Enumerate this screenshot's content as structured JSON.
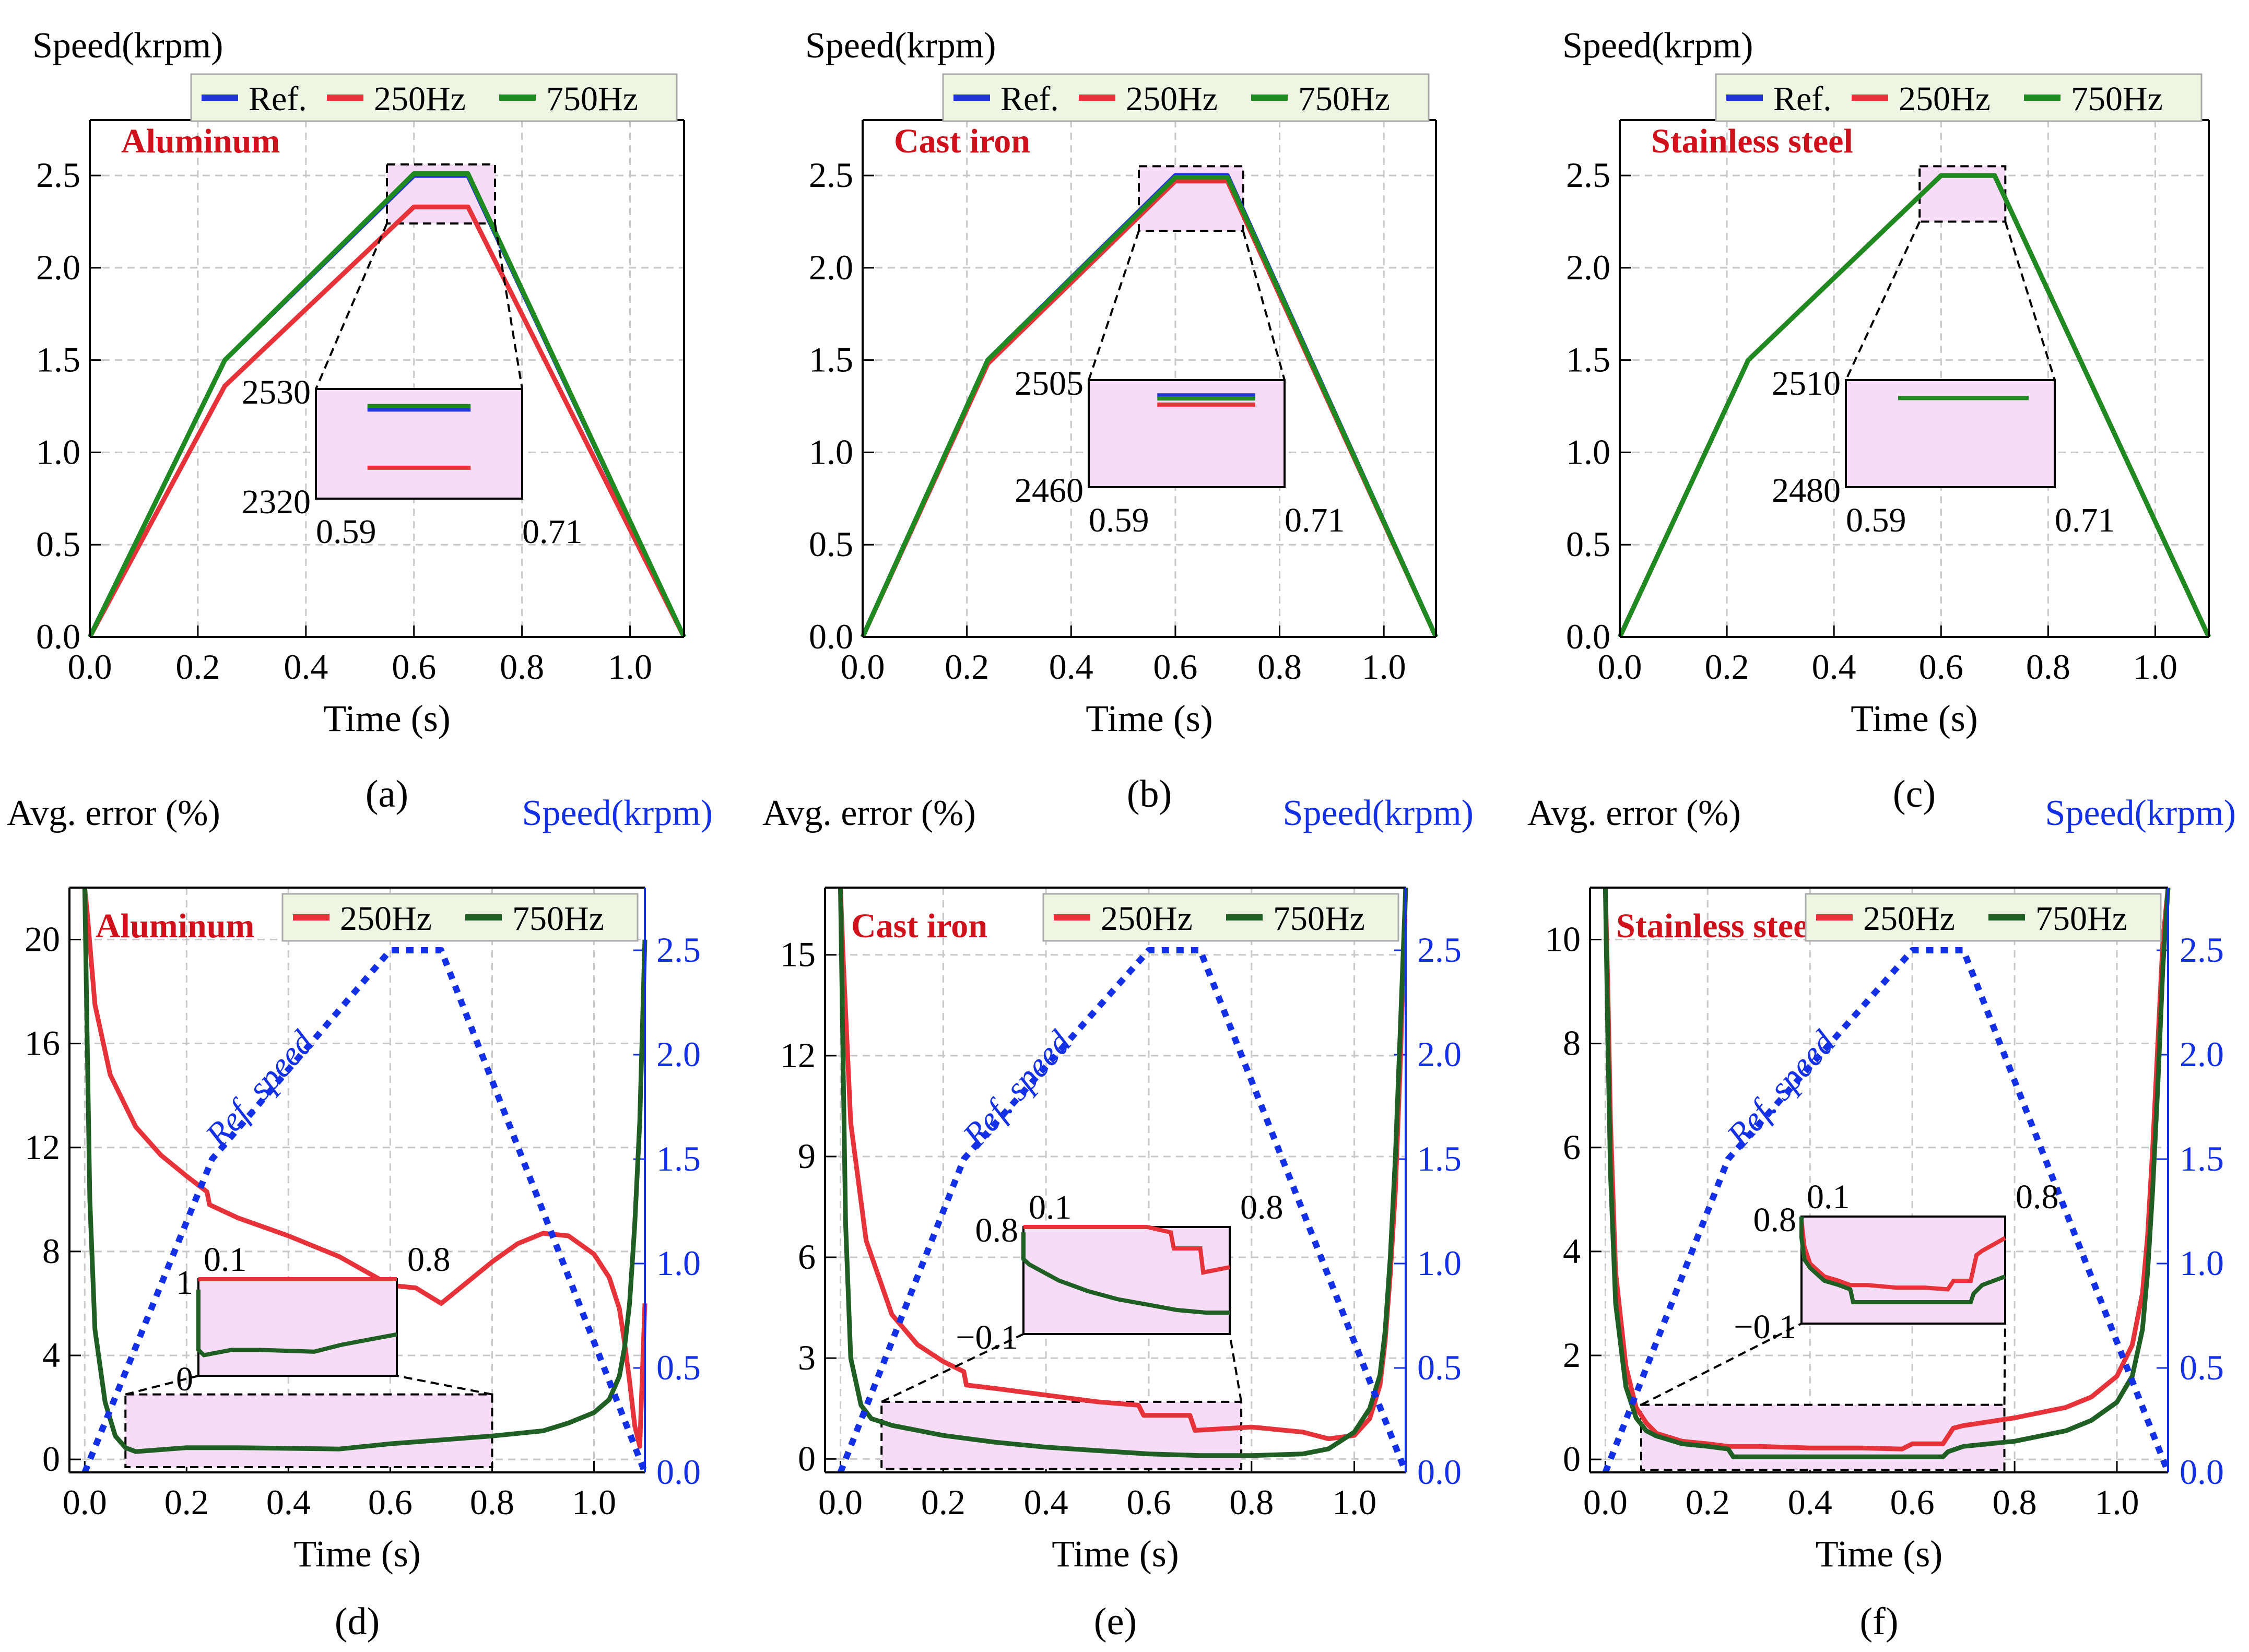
{
  "colors": {
    "ref": "#2135d6",
    "f250": "#e8323a",
    "f750": "#1f8a1f",
    "f750_dark": "#1f5f24",
    "ref_speed": "#1330e6",
    "material_label": "#d0101a",
    "zoom_fill": "#f7dcf7",
    "legend_fill": "#eef5e2",
    "grid": "#c8c8c8"
  },
  "chart_data": [
    {
      "panel": "(a)",
      "type": "line",
      "title": "",
      "material": "Aluminum",
      "xlabel": "Time (s)",
      "ylabel": "Speed(krpm)",
      "xlim": [
        0,
        1.1
      ],
      "ylim": [
        0,
        2.8
      ],
      "xticks": [
        "0.0",
        "0.2",
        "0.4",
        "0.6",
        "0.8",
        "1.0"
      ],
      "yticks": [
        "0.0",
        "0.5",
        "1.0",
        "1.5",
        "2.0",
        "2.5"
      ],
      "legend": [
        "Ref.",
        "250Hz",
        "750Hz"
      ],
      "series": [
        {
          "name": "Ref.",
          "x": [
            0,
            0.25,
            0.6,
            0.7,
            1.1
          ],
          "y": [
            0,
            1.5,
            2.5,
            2.5,
            0
          ]
        },
        {
          "name": "250Hz",
          "x": [
            0,
            0.25,
            0.6,
            0.7,
            1.1
          ],
          "y": [
            0,
            1.36,
            2.33,
            2.33,
            0
          ]
        },
        {
          "name": "750Hz",
          "x": [
            0,
            0.25,
            0.6,
            0.7,
            1.1
          ],
          "y": [
            0,
            1.5,
            2.51,
            2.51,
            0
          ]
        }
      ],
      "zoom": {
        "x": [
          0.55,
          0.75
        ],
        "y": [
          2.24,
          2.56
        ]
      },
      "inset": {
        "xlabels": [
          "0.59",
          "0.71"
        ],
        "ylabels": [
          "2530",
          "2320"
        ]
      }
    },
    {
      "panel": "(b)",
      "type": "line",
      "title": "",
      "material": "Cast iron",
      "xlabel": "Time (s)",
      "ylabel": "Speed(krpm)",
      "xlim": [
        0,
        1.1
      ],
      "ylim": [
        0,
        2.8
      ],
      "xticks": [
        "0.0",
        "0.2",
        "0.4",
        "0.6",
        "0.8",
        "1.0"
      ],
      "yticks": [
        "0.0",
        "0.5",
        "1.0",
        "1.5",
        "2.0",
        "2.5"
      ],
      "legend": [
        "Ref.",
        "250Hz",
        "750Hz"
      ],
      "series": [
        {
          "name": "Ref.",
          "x": [
            0,
            0.24,
            0.6,
            0.7,
            1.1
          ],
          "y": [
            0,
            1.5,
            2.5,
            2.5,
            0
          ]
        },
        {
          "name": "250Hz",
          "x": [
            0,
            0.24,
            0.6,
            0.7,
            1.1
          ],
          "y": [
            0,
            1.48,
            2.47,
            2.47,
            0
          ]
        },
        {
          "name": "750Hz",
          "x": [
            0,
            0.24,
            0.6,
            0.7,
            1.1
          ],
          "y": [
            0,
            1.5,
            2.49,
            2.49,
            0
          ]
        }
      ],
      "zoom": {
        "x": [
          0.53,
          0.73
        ],
        "y": [
          2.2,
          2.55
        ]
      },
      "inset": {
        "xlabels": [
          "0.59",
          "0.71"
        ],
        "ylabels": [
          "2505",
          "2460"
        ]
      }
    },
    {
      "panel": "(c)",
      "type": "line",
      "title": "",
      "material": "Stainless steel",
      "xlabel": "Time (s)",
      "ylabel": "Speed(krpm)",
      "xlim": [
        0,
        1.1
      ],
      "ylim": [
        0,
        2.8
      ],
      "xticks": [
        "0.0",
        "0.2",
        "0.4",
        "0.6",
        "0.8",
        "1.0"
      ],
      "yticks": [
        "0.0",
        "0.5",
        "1.0",
        "1.5",
        "2.0",
        "2.5"
      ],
      "legend": [
        "Ref.",
        "250Hz",
        "750Hz"
      ],
      "series": [
        {
          "name": "Ref.",
          "x": [
            0,
            0.24,
            0.6,
            0.7,
            1.1
          ],
          "y": [
            0,
            1.5,
            2.5,
            2.5,
            0
          ]
        },
        {
          "name": "250Hz",
          "x": [
            0,
            0.24,
            0.6,
            0.7,
            1.1
          ],
          "y": [
            0,
            1.5,
            2.5,
            2.5,
            0
          ]
        },
        {
          "name": "750Hz",
          "x": [
            0,
            0.24,
            0.6,
            0.7,
            1.1
          ],
          "y": [
            0,
            1.5,
            2.5,
            2.5,
            0
          ]
        }
      ],
      "zoom": {
        "x": [
          0.56,
          0.72
        ],
        "y": [
          2.25,
          2.55
        ]
      },
      "inset": {
        "xlabels": [
          "0.59",
          "0.71"
        ],
        "ylabels": [
          "2510",
          "2480"
        ]
      }
    },
    {
      "panel": "(d)",
      "type": "line",
      "title": "",
      "material": "Aluminum",
      "xlabel": "Time (s)",
      "ylabel": "Avg. error (%)",
      "ylabel_right": "Speed(krpm)",
      "ref_label": "Ref. speed",
      "xlim": [
        -0.03,
        1.1
      ],
      "ylim": [
        -0.5,
        22
      ],
      "ylim_right": [
        0,
        2.8
      ],
      "xticks": [
        "0.0",
        "0.2",
        "0.4",
        "0.6",
        "0.8",
        "1.0"
      ],
      "yticks": [
        "0",
        "4",
        "8",
        "12",
        "16",
        "20"
      ],
      "yticks_right": [
        "0.0",
        "0.5",
        "1.0",
        "1.5",
        "2.0",
        "2.5"
      ],
      "legend": [
        "250Hz",
        "750Hz"
      ],
      "series": [
        {
          "name": "250Hz",
          "x": [
            0.0,
            0.005,
            0.02,
            0.05,
            0.1,
            0.15,
            0.2,
            0.24,
            0.245,
            0.3,
            0.4,
            0.5,
            0.6,
            0.65,
            0.7,
            0.75,
            0.8,
            0.85,
            0.9,
            0.95,
            1.0,
            1.03,
            1.05,
            1.06,
            1.07,
            1.08,
            1.09,
            1.1
          ],
          "y": [
            22,
            21,
            17.5,
            14.8,
            12.8,
            11.7,
            10.9,
            10.3,
            9.8,
            9.3,
            8.6,
            7.8,
            6.7,
            6.6,
            6.0,
            6.8,
            7.6,
            8.3,
            8.7,
            8.6,
            7.9,
            7.0,
            5.8,
            4.5,
            3.0,
            1.3,
            0.5,
            6
          ]
        },
        {
          "name": "750Hz",
          "x": [
            0.0,
            0.005,
            0.01,
            0.02,
            0.04,
            0.06,
            0.08,
            0.1,
            0.2,
            0.3,
            0.5,
            0.6,
            0.7,
            0.8,
            0.9,
            0.95,
            1.0,
            1.03,
            1.05,
            1.06,
            1.07,
            1.08,
            1.09,
            1.1
          ],
          "y": [
            22,
            16,
            10,
            5,
            2.2,
            0.9,
            0.45,
            0.3,
            0.45,
            0.45,
            0.4,
            0.6,
            0.75,
            0.9,
            1.1,
            1.4,
            1.8,
            2.3,
            3.2,
            4.3,
            6,
            9,
            13,
            20
          ]
        },
        {
          "name": "Ref. speed",
          "x": [
            0,
            0.25,
            0.6,
            0.7,
            1.1
          ],
          "y": [
            0,
            1.5,
            2.5,
            2.5,
            0
          ]
        }
      ],
      "zoom": {
        "x": [
          0.08,
          0.8
        ],
        "y": [
          -0.3,
          2.5
        ]
      },
      "inset": {
        "xlabels": [
          "0.1",
          "0.8"
        ],
        "ylabels": [
          "1",
          "0"
        ]
      }
    },
    {
      "panel": "(e)",
      "type": "line",
      "title": "",
      "material": "Cast iron",
      "xlabel": "Time (s)",
      "ylabel": "Avg. error (%)",
      "ylabel_right": "Speed(krpm)",
      "ref_label": "Ref. speed",
      "xlim": [
        -0.03,
        1.1
      ],
      "ylim": [
        -0.4,
        17
      ],
      "ylim_right": [
        0,
        2.8
      ],
      "xticks": [
        "0.0",
        "0.2",
        "0.4",
        "0.6",
        "0.8",
        "1.0"
      ],
      "yticks": [
        "0",
        "3",
        "6",
        "9",
        "12",
        "15"
      ],
      "yticks_right": [
        "0.0",
        "0.5",
        "1.0",
        "1.5",
        "2.0",
        "2.5"
      ],
      "legend": [
        "250Hz",
        "750Hz"
      ],
      "series": [
        {
          "name": "250Hz",
          "x": [
            0.0,
            0.005,
            0.02,
            0.05,
            0.1,
            0.15,
            0.2,
            0.24,
            0.245,
            0.3,
            0.4,
            0.5,
            0.58,
            0.59,
            0.68,
            0.69,
            0.8,
            0.9,
            0.95,
            1.0,
            1.03,
            1.05,
            1.06,
            1.07,
            1.08,
            1.09,
            1.1
          ],
          "y": [
            17,
            15,
            10,
            6.5,
            4.3,
            3.4,
            2.9,
            2.6,
            2.2,
            2.1,
            1.9,
            1.7,
            1.6,
            1.3,
            1.3,
            0.85,
            0.95,
            0.8,
            0.6,
            0.7,
            1.2,
            2.2,
            3.5,
            5.5,
            8,
            12,
            17
          ]
        },
        {
          "name": "750Hz",
          "x": [
            0.0,
            0.005,
            0.01,
            0.02,
            0.04,
            0.06,
            0.08,
            0.1,
            0.2,
            0.3,
            0.4,
            0.5,
            0.6,
            0.7,
            0.8,
            0.9,
            0.95,
            1.0,
            1.03,
            1.05,
            1.06,
            1.07,
            1.08,
            1.09,
            1.1
          ],
          "y": [
            17,
            12,
            7,
            3,
            1.6,
            1.2,
            1.1,
            1.0,
            0.7,
            0.5,
            0.35,
            0.25,
            0.15,
            0.1,
            0.1,
            0.15,
            0.3,
            0.8,
            1.5,
            2.5,
            3.8,
            6,
            9,
            13,
            17
          ]
        },
        {
          "name": "Ref. speed",
          "x": [
            0,
            0.24,
            0.6,
            0.7,
            1.1
          ],
          "y": [
            0,
            1.5,
            2.5,
            2.5,
            0
          ]
        }
      ],
      "zoom": {
        "x": [
          0.08,
          0.78
        ],
        "y": [
          -0.3,
          1.7
        ]
      },
      "inset": {
        "xlabels": [
          "0.1",
          "0.8"
        ],
        "ylabels": [
          "0.8",
          "−0.1"
        ]
      }
    },
    {
      "panel": "(f)",
      "type": "line",
      "title": "",
      "material": "Stainless steel",
      "xlabel": "Time (s)",
      "ylabel": "Avg. error (%)",
      "ylabel_right": "Speed(krpm)",
      "ref_label": "Ref. speed",
      "xlim": [
        -0.03,
        1.1
      ],
      "ylim": [
        -0.25,
        11
      ],
      "ylim_right": [
        0,
        2.8
      ],
      "xticks": [
        "0.0",
        "0.2",
        "0.4",
        "0.6",
        "0.8",
        "1.0"
      ],
      "yticks": [
        "0",
        "2",
        "4",
        "6",
        "8",
        "10"
      ],
      "yticks_right": [
        "0.0",
        "0.5",
        "1.0",
        "1.5",
        "2.0",
        "2.5"
      ],
      "legend": [
        "250Hz",
        "750Hz"
      ],
      "series": [
        {
          "name": "250Hz",
          "x": [
            0.0,
            0.005,
            0.01,
            0.02,
            0.04,
            0.06,
            0.08,
            0.1,
            0.15,
            0.2,
            0.24,
            0.3,
            0.4,
            0.5,
            0.58,
            0.6,
            0.66,
            0.68,
            0.7,
            0.8,
            0.9,
            0.95,
            1.0,
            1.03,
            1.05,
            1.06,
            1.07,
            1.08,
            1.09,
            1.1
          ],
          "y": [
            11,
            9,
            6.5,
            3.6,
            1.8,
            1.0,
            0.7,
            0.5,
            0.35,
            0.3,
            0.25,
            0.25,
            0.22,
            0.22,
            0.2,
            0.3,
            0.3,
            0.6,
            0.65,
            0.8,
            1.0,
            1.2,
            1.6,
            2.2,
            3.2,
            4.3,
            6,
            8,
            10,
            11
          ]
        },
        {
          "name": "750Hz",
          "x": [
            0.0,
            0.005,
            0.01,
            0.02,
            0.04,
            0.06,
            0.08,
            0.1,
            0.15,
            0.2,
            0.24,
            0.25,
            0.3,
            0.4,
            0.5,
            0.6,
            0.66,
            0.67,
            0.7,
            0.8,
            0.9,
            0.95,
            1.0,
            1.03,
            1.05,
            1.06,
            1.07,
            1.08,
            1.09,
            1.1
          ],
          "y": [
            11,
            8,
            5.5,
            3,
            1.4,
            0.8,
            0.55,
            0.45,
            0.3,
            0.25,
            0.2,
            0.05,
            0.05,
            0.05,
            0.05,
            0.05,
            0.05,
            0.15,
            0.25,
            0.35,
            0.55,
            0.75,
            1.1,
            1.6,
            2.5,
            3.6,
            5.2,
            7.2,
            9.5,
            11
          ]
        },
        {
          "name": "Ref. speed",
          "x": [
            0,
            0.24,
            0.6,
            0.7,
            1.1
          ],
          "y": [
            0,
            1.5,
            2.5,
            2.5,
            0
          ]
        }
      ],
      "zoom": {
        "x": [
          0.07,
          0.78
        ],
        "y": [
          -0.2,
          1.05
        ]
      },
      "inset": {
        "xlabels": [
          "0.1",
          "0.8"
        ],
        "ylabels": [
          "0.8",
          "−0.1"
        ]
      }
    }
  ]
}
